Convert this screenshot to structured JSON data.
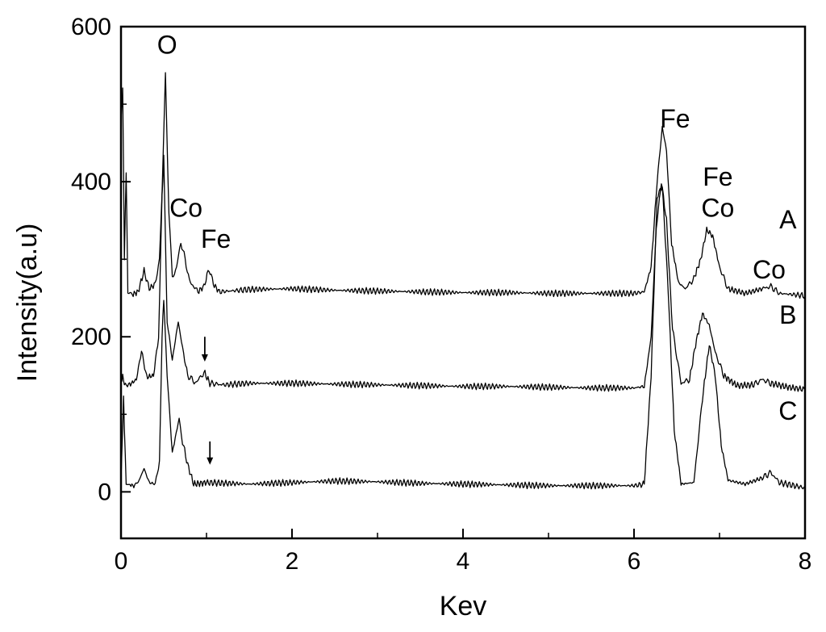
{
  "chart_data": {
    "type": "line",
    "xlabel": "Kev",
    "ylabel": "Intensity(a.u)",
    "xlim": [
      0,
      8
    ],
    "ylim": [
      -60,
      600
    ],
    "grid": false,
    "x_ticks": [
      "0",
      "2",
      "4",
      "6",
      "8"
    ],
    "y_ticks": [
      "0",
      "200",
      "400",
      "600"
    ],
    "series": [
      {
        "name": "A",
        "points": [
          [
            0.0,
            480
          ],
          [
            0.02,
            520
          ],
          [
            0.04,
            300
          ],
          [
            0.06,
            415
          ],
          [
            0.08,
            260
          ],
          [
            0.12,
            254
          ],
          [
            0.2,
            258
          ],
          [
            0.27,
            285
          ],
          [
            0.33,
            262
          ],
          [
            0.4,
            268
          ],
          [
            0.45,
            300
          ],
          [
            0.48,
            390
          ],
          [
            0.52,
            540
          ],
          [
            0.56,
            360
          ],
          [
            0.6,
            275
          ],
          [
            0.65,
            290
          ],
          [
            0.7,
            322
          ],
          [
            0.75,
            300
          ],
          [
            0.8,
            272
          ],
          [
            0.9,
            258
          ],
          [
            0.97,
            265
          ],
          [
            1.03,
            288
          ],
          [
            1.08,
            268
          ],
          [
            1.15,
            258
          ],
          [
            1.5,
            261
          ],
          [
            2.0,
            262
          ],
          [
            2.5,
            260
          ],
          [
            3.0,
            259
          ],
          [
            3.5,
            258
          ],
          [
            4.0,
            257
          ],
          [
            4.5,
            257
          ],
          [
            5.0,
            256
          ],
          [
            5.5,
            256
          ],
          [
            6.0,
            256
          ],
          [
            6.12,
            258
          ],
          [
            6.2,
            290
          ],
          [
            6.27,
            400
          ],
          [
            6.33,
            470
          ],
          [
            6.38,
            440
          ],
          [
            6.44,
            320
          ],
          [
            6.52,
            270
          ],
          [
            6.6,
            262
          ],
          [
            6.7,
            275
          ],
          [
            6.78,
            300
          ],
          [
            6.85,
            338
          ],
          [
            6.92,
            330
          ],
          [
            7.0,
            290
          ],
          [
            7.1,
            262
          ],
          [
            7.3,
            256
          ],
          [
            7.5,
            262
          ],
          [
            7.6,
            265
          ],
          [
            7.7,
            256
          ],
          [
            8.0,
            253
          ]
        ]
      },
      {
        "name": "B",
        "points": [
          [
            0.0,
            140
          ],
          [
            0.02,
            150
          ],
          [
            0.04,
            138
          ],
          [
            0.1,
            138
          ],
          [
            0.18,
            145
          ],
          [
            0.24,
            182
          ],
          [
            0.3,
            148
          ],
          [
            0.38,
            150
          ],
          [
            0.44,
            200
          ],
          [
            0.48,
            380
          ],
          [
            0.5,
            430
          ],
          [
            0.54,
            220
          ],
          [
            0.6,
            170
          ],
          [
            0.67,
            220
          ],
          [
            0.72,
            185
          ],
          [
            0.78,
            150
          ],
          [
            0.88,
            140
          ],
          [
            0.97,
            155
          ],
          [
            1.04,
            140
          ],
          [
            1.2,
            138
          ],
          [
            1.5,
            140
          ],
          [
            2.0,
            140
          ],
          [
            2.5,
            139
          ],
          [
            3.0,
            138
          ],
          [
            3.5,
            137
          ],
          [
            4.0,
            136
          ],
          [
            4.5,
            136
          ],
          [
            5.0,
            135
          ],
          [
            5.5,
            134
          ],
          [
            6.0,
            134
          ],
          [
            6.12,
            136
          ],
          [
            6.2,
            200
          ],
          [
            6.26,
            340
          ],
          [
            6.32,
            400
          ],
          [
            6.38,
            350
          ],
          [
            6.45,
            210
          ],
          [
            6.55,
            140
          ],
          [
            6.65,
            145
          ],
          [
            6.72,
            190
          ],
          [
            6.8,
            230
          ],
          [
            6.88,
            215
          ],
          [
            6.95,
            180
          ],
          [
            7.05,
            150
          ],
          [
            7.2,
            137
          ],
          [
            7.4,
            138
          ],
          [
            7.5,
            145
          ],
          [
            7.6,
            140
          ],
          [
            7.8,
            135
          ],
          [
            8.0,
            132
          ]
        ]
      },
      {
        "name": "C",
        "points": [
          [
            0.0,
            15
          ],
          [
            0.03,
            120
          ],
          [
            0.06,
            10
          ],
          [
            0.15,
            8
          ],
          [
            0.2,
            12
          ],
          [
            0.27,
            30
          ],
          [
            0.33,
            12
          ],
          [
            0.4,
            10
          ],
          [
            0.45,
            40
          ],
          [
            0.48,
            200
          ],
          [
            0.5,
            250
          ],
          [
            0.54,
            150
          ],
          [
            0.6,
            50
          ],
          [
            0.68,
            95
          ],
          [
            0.72,
            65
          ],
          [
            0.78,
            35
          ],
          [
            0.85,
            10
          ],
          [
            1.0,
            12
          ],
          [
            1.5,
            10
          ],
          [
            2.0,
            12
          ],
          [
            2.5,
            14
          ],
          [
            3.0,
            13
          ],
          [
            3.5,
            11
          ],
          [
            4.0,
            10
          ],
          [
            4.5,
            9
          ],
          [
            5.0,
            8
          ],
          [
            5.5,
            8
          ],
          [
            6.0,
            8
          ],
          [
            6.12,
            10
          ],
          [
            6.2,
            150
          ],
          [
            6.27,
            380
          ],
          [
            6.33,
            395
          ],
          [
            6.4,
            260
          ],
          [
            6.47,
            80
          ],
          [
            6.55,
            10
          ],
          [
            6.7,
            12
          ],
          [
            6.8,
            120
          ],
          [
            6.88,
            190
          ],
          [
            6.95,
            150
          ],
          [
            7.02,
            60
          ],
          [
            7.1,
            15
          ],
          [
            7.3,
            10
          ],
          [
            7.5,
            18
          ],
          [
            7.6,
            25
          ],
          [
            7.7,
            12
          ],
          [
            8.0,
            5
          ]
        ]
      }
    ],
    "annotations": [
      {
        "text": "O",
        "x": 0.54,
        "y": 565
      },
      {
        "text": "Co",
        "x": 0.76,
        "y": 355
      },
      {
        "text": "Fe",
        "x": 1.11,
        "y": 315
      },
      {
        "text": "Fe",
        "x": 6.48,
        "y": 470
      },
      {
        "text": "Fe",
        "x": 6.98,
        "y": 395
      },
      {
        "text": "Co",
        "x": 6.98,
        "y": 355
      },
      {
        "text": "Co",
        "x": 7.58,
        "y": 275
      }
    ],
    "arrows": [
      {
        "x": 0.98,
        "y_from": 200,
        "y_to": 168
      },
      {
        "x": 1.04,
        "y_from": 65,
        "y_to": 35
      }
    ],
    "series_labels": [
      {
        "text": "A",
        "x": 7.8,
        "y": 340
      },
      {
        "text": "B",
        "x": 7.8,
        "y": 217
      },
      {
        "text": "C",
        "x": 7.8,
        "y": 93
      }
    ]
  }
}
